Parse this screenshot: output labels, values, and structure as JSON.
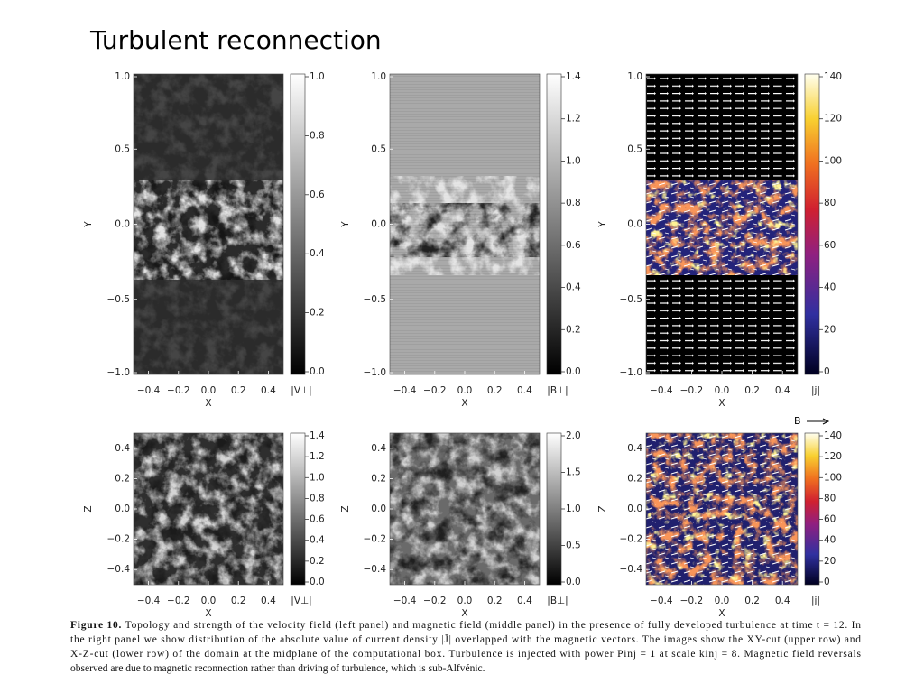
{
  "title": "Turbulent reconnection",
  "panels": [
    {
      "x_label": "X",
      "y_label": "Y",
      "x_ticks": [
        "−0.4",
        "−0.2",
        "0.0",
        "0.2",
        "0.4"
      ],
      "y_ticks": [
        "1.0",
        "0.5",
        "0.0",
        "−0.5",
        "−1.0"
      ],
      "colorbar_ticks": [
        "1.0",
        "0.8",
        "0.6",
        "0.4",
        "0.2",
        "0.0"
      ],
      "colorbar_label": "|V⊥|"
    },
    {
      "x_label": "X",
      "y_label": "Y",
      "x_ticks": [
        "−0.4",
        "−0.2",
        "0.0",
        "0.2",
        "0.4"
      ],
      "y_ticks": [
        "1.0",
        "0.5",
        "0.0",
        "−0.5",
        "−1.0"
      ],
      "colorbar_ticks": [
        "1.4",
        "1.2",
        "1.0",
        "0.8",
        "0.6",
        "0.4",
        "0.2",
        "0.0"
      ],
      "colorbar_label": "|B⊥|"
    },
    {
      "x_label": "X",
      "y_label": "Y",
      "x_ticks": [
        "−0.4",
        "−0.2",
        "0.0",
        "0.2",
        "0.4"
      ],
      "y_ticks": [
        "1.0",
        "0.5",
        "0.0",
        "−0.5",
        "−1.0"
      ],
      "colorbar_ticks": [
        "140",
        "120",
        "100",
        "80",
        "60",
        "40",
        "20",
        "0"
      ],
      "colorbar_label": "|j|"
    },
    {
      "x_label": "X",
      "y_label": "Z",
      "x_ticks": [
        "−0.4",
        "−0.2",
        "0.0",
        "0.2",
        "0.4"
      ],
      "y_ticks": [
        "0.4",
        "0.2",
        "0.0",
        "−0.2",
        "−0.4"
      ],
      "colorbar_ticks": [
        "1.4",
        "1.2",
        "1.0",
        "0.8",
        "0.6",
        "0.4",
        "0.2",
        "0.0"
      ],
      "colorbar_label": "|V⊥|"
    },
    {
      "x_label": "X",
      "y_label": "Z",
      "x_ticks": [
        "−0.4",
        "−0.2",
        "0.0",
        "0.2",
        "0.4"
      ],
      "y_ticks": [
        "0.4",
        "0.2",
        "0.0",
        "−0.2",
        "−0.4"
      ],
      "colorbar_ticks": [
        "2.0",
        "1.5",
        "1.0",
        "0.5",
        "0.0"
      ],
      "colorbar_label": "|B⊥|"
    },
    {
      "x_label": "X",
      "y_label": "Z",
      "x_ticks": [
        "−0.4",
        "−0.2",
        "0.0",
        "0.2",
        "0.4"
      ],
      "y_ticks": [
        "0.4",
        "0.2",
        "0.0",
        "−0.2",
        "−0.4"
      ],
      "colorbar_ticks": [
        "140",
        "120",
        "100",
        "80",
        "60",
        "40",
        "20",
        "0"
      ],
      "colorbar_label": "|j|"
    }
  ],
  "b_arrow_label": "B",
  "caption": {
    "label": "Figure 10.",
    "lines": [
      "Topology and strength of the velocity field (left panel) and magnetic field (middle panel) in the presence of fully developed turbulence at time t = 12. In",
      "the right panel we show distribution of the absolute value of current density |J̄| overlapped with the magnetic vectors. The images show the XY-cut (upper row) and",
      "X-Z-cut (lower row) of the domain at the midplane of the computational box. Turbulence is injected with power Pinj = 1 at scale kinj = 8. Magnetic field reversals",
      "observed are due to magnetic reconnection rather than driving of turbulence, which is sub-Alfvénic."
    ]
  }
}
